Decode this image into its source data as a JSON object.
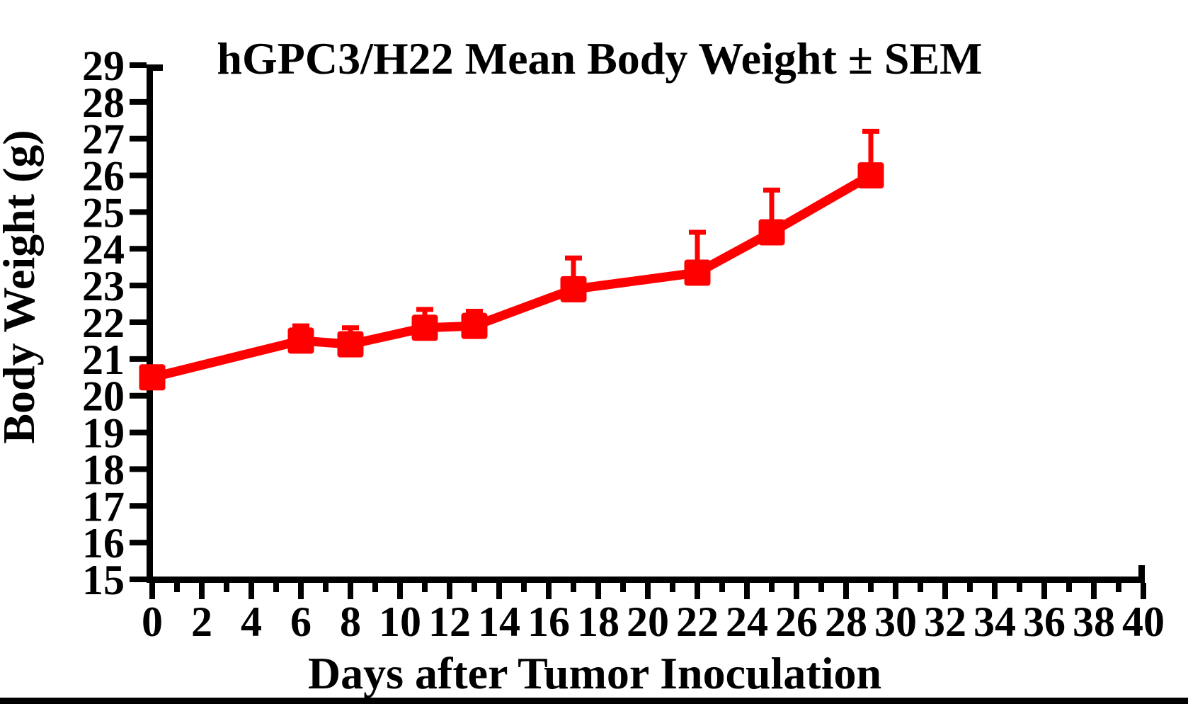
{
  "page": {
    "background_color": "#ffffff",
    "bottom_bar_color": "#000000"
  },
  "chart_data": {
    "type": "line",
    "title": "hGPC3/H22 Mean Body Weight ± SEM",
    "xlabel": "Days after Tumor Inoculation",
    "ylabel": "Body Weight (g)",
    "xlim": [
      0,
      40
    ],
    "ylim": [
      15,
      29
    ],
    "x_tick_labels": [
      0,
      2,
      4,
      6,
      8,
      10,
      12,
      14,
      16,
      18,
      20,
      22,
      24,
      26,
      28,
      30,
      32,
      34,
      36,
      38,
      40
    ],
    "x_minor_tick_step": 1,
    "y_tick_labels": [
      15,
      16,
      17,
      18,
      19,
      20,
      21,
      22,
      23,
      24,
      25,
      26,
      27,
      28,
      29
    ],
    "grid": false,
    "legend": false,
    "error_bars": "upper_only_sem",
    "axis_color": "#000000",
    "series": [
      {
        "name": "hGPC3/H22",
        "color": "#ff0000",
        "marker": "square",
        "x": [
          0,
          6,
          8,
          11,
          13,
          17,
          22,
          25,
          29
        ],
        "y": [
          20.5,
          21.5,
          21.4,
          21.85,
          21.9,
          22.9,
          23.35,
          24.45,
          26.0
        ],
        "sem": [
          0,
          0.4,
          0.45,
          0.5,
          0.4,
          0.85,
          1.1,
          1.15,
          1.2
        ]
      }
    ]
  }
}
